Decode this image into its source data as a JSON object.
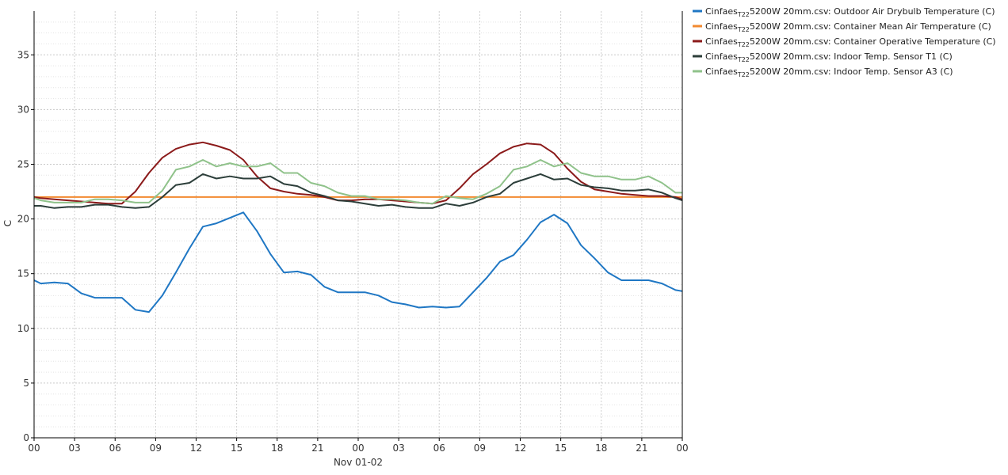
{
  "chart_data": {
    "type": "line",
    "xlabel": "Nov 01-02",
    "ylabel": "C",
    "ylim": [
      0,
      39
    ],
    "xlim": [
      0,
      48
    ],
    "grid": true,
    "legend_position": "top-right",
    "x_tick_labels": [
      "00",
      "03",
      "06",
      "09",
      "12",
      "15",
      "18",
      "21",
      "00",
      "03",
      "06",
      "09",
      "12",
      "15",
      "18",
      "21",
      "00"
    ],
    "y_ticks": [
      0,
      5,
      10,
      15,
      20,
      25,
      30,
      35
    ],
    "series": [
      {
        "name_prefix": "Cinfaes",
        "name_sub": "T22",
        "name_suffix": "5200W 20mm.csv: Outdoor Air Drybulb Temperature  (C)",
        "color": "#1f77c4",
        "x": [
          0,
          0.5,
          1.5,
          2.5,
          3.5,
          4.5,
          5.5,
          6.5,
          7.5,
          8.5,
          9.5,
          10.5,
          11.5,
          12.5,
          13.5,
          14.5,
          15.5,
          16.5,
          17.5,
          18.5,
          19.5,
          20.5,
          21.5,
          22.5,
          23.5,
          24.5,
          25.5,
          26.5,
          27.5,
          28.5,
          29.5,
          30.5,
          31.5,
          32.5,
          33.5,
          34.5,
          35.5,
          36.5,
          37.5,
          38.5,
          39.5,
          40.5,
          41.5,
          42.5,
          43.5,
          44.5,
          45.5,
          46.5,
          47.5,
          48
        ],
        "y": [
          14.4,
          14.1,
          14.2,
          14.1,
          13.2,
          12.8,
          12.8,
          12.8,
          11.7,
          11.5,
          13.0,
          15.1,
          17.3,
          19.3,
          19.6,
          20.1,
          20.6,
          18.9,
          16.8,
          15.1,
          15.2,
          14.9,
          13.8,
          13.3,
          13.3,
          13.3,
          13.0,
          12.4,
          12.2,
          11.9,
          12.0,
          11.9,
          12.0,
          13.3,
          14.6,
          16.1,
          16.7,
          18.1,
          19.7,
          20.4,
          19.6,
          17.6,
          16.4,
          15.1,
          14.4,
          14.4,
          14.4,
          14.1,
          13.5,
          13.4
        ]
      },
      {
        "name_prefix": "Cinfaes",
        "name_sub": "T22",
        "name_suffix": "5200W 20mm.csv: Container Mean Air Temperature  (C)",
        "color": "#f28a30",
        "x": [
          0,
          48
        ],
        "y": [
          22.0,
          22.0
        ]
      },
      {
        "name_prefix": "Cinfaes",
        "name_sub": "T22",
        "name_suffix": "5200W 20mm.csv: Container Operative Temperature  (C)",
        "color": "#8b1a1a",
        "x": [
          0,
          0.5,
          1.5,
          2.5,
          3.5,
          4.5,
          5.5,
          6.5,
          7.5,
          8.5,
          9.5,
          10.5,
          11.5,
          12.5,
          13.5,
          14.5,
          15.5,
          16.5,
          17.5,
          18.5,
          19.5,
          20.5,
          21.5,
          22.5,
          23.5,
          24.5,
          25.5,
          26.5,
          27.5,
          28.5,
          29.5,
          30.5,
          31.5,
          32.5,
          33.5,
          34.5,
          35.5,
          36.5,
          37.5,
          38.5,
          39.5,
          40.5,
          41.5,
          42.5,
          43.5,
          44.5,
          45.5,
          46.5,
          47.5,
          48
        ],
        "y": [
          22.0,
          21.9,
          21.8,
          21.7,
          21.6,
          21.5,
          21.4,
          21.4,
          22.5,
          24.2,
          25.6,
          26.4,
          26.8,
          27.0,
          26.7,
          26.3,
          25.4,
          23.9,
          22.8,
          22.5,
          22.3,
          22.2,
          22.0,
          21.7,
          21.7,
          21.8,
          21.8,
          21.7,
          21.6,
          21.5,
          21.4,
          21.7,
          22.8,
          24.1,
          25.0,
          26.0,
          26.6,
          26.9,
          26.8,
          26.0,
          24.6,
          23.4,
          22.7,
          22.5,
          22.3,
          22.2,
          22.1,
          22.1,
          22.0,
          21.8
        ]
      },
      {
        "name_prefix": "Cinfaes",
        "name_sub": "T22",
        "name_suffix": "5200W 20mm.csv: Indoor Temp. Sensor T1   (C)",
        "color": "#2c3e3a",
        "x": [
          0,
          0.5,
          1.5,
          2.5,
          3.5,
          4.5,
          5.5,
          6.5,
          7.5,
          8.5,
          9.5,
          10.5,
          11.5,
          12.5,
          13.5,
          14.5,
          15.5,
          16.5,
          17.5,
          18.5,
          19.5,
          20.5,
          21.5,
          22.5,
          23.5,
          24.5,
          25.5,
          26.5,
          27.5,
          28.5,
          29.5,
          30.5,
          31.5,
          32.5,
          33.5,
          34.5,
          35.5,
          36.5,
          37.5,
          38.5,
          39.5,
          40.5,
          41.5,
          42.5,
          43.5,
          44.5,
          45.5,
          46.5,
          47.5,
          48
        ],
        "y": [
          21.2,
          21.2,
          21.0,
          21.1,
          21.1,
          21.3,
          21.3,
          21.1,
          21.0,
          21.1,
          22.0,
          23.1,
          23.3,
          24.1,
          23.7,
          23.9,
          23.7,
          23.7,
          23.9,
          23.2,
          23.0,
          22.4,
          22.1,
          21.7,
          21.6,
          21.4,
          21.2,
          21.3,
          21.1,
          21.0,
          21.0,
          21.4,
          21.2,
          21.5,
          22.0,
          22.3,
          23.3,
          23.7,
          24.1,
          23.6,
          23.7,
          23.1,
          22.9,
          22.8,
          22.6,
          22.6,
          22.7,
          22.4,
          21.9,
          21.7
        ]
      },
      {
        "name_prefix": "Cinfaes",
        "name_sub": "T22",
        "name_suffix": "5200W 20mm.csv: Indoor Temp. Sensor A3   (C)",
        "color": "#8fc28a",
        "x": [
          0,
          0.5,
          1.5,
          2.5,
          3.5,
          4.5,
          5.5,
          6.5,
          7.5,
          8.5,
          9.5,
          10.5,
          11.5,
          12.5,
          13.5,
          14.5,
          15.5,
          16.5,
          17.5,
          18.5,
          19.5,
          20.5,
          21.5,
          22.5,
          23.5,
          24.5,
          25.5,
          26.5,
          27.5,
          28.5,
          29.5,
          30.5,
          31.5,
          32.5,
          33.5,
          34.5,
          35.5,
          36.5,
          37.5,
          38.5,
          39.5,
          40.5,
          41.5,
          42.5,
          43.5,
          44.5,
          45.5,
          46.5,
          47.5,
          48
        ],
        "y": [
          21.9,
          21.7,
          21.5,
          21.5,
          21.5,
          21.8,
          21.8,
          21.7,
          21.5,
          21.5,
          22.6,
          24.5,
          24.8,
          25.4,
          24.8,
          25.1,
          24.8,
          24.8,
          25.1,
          24.2,
          24.2,
          23.3,
          23.0,
          22.4,
          22.1,
          22.1,
          21.8,
          21.8,
          21.7,
          21.5,
          21.4,
          22.1,
          21.9,
          21.8,
          22.3,
          23.0,
          24.5,
          24.8,
          25.4,
          24.8,
          25.1,
          24.2,
          23.9,
          23.9,
          23.6,
          23.6,
          23.9,
          23.3,
          22.4,
          22.4
        ]
      }
    ]
  }
}
